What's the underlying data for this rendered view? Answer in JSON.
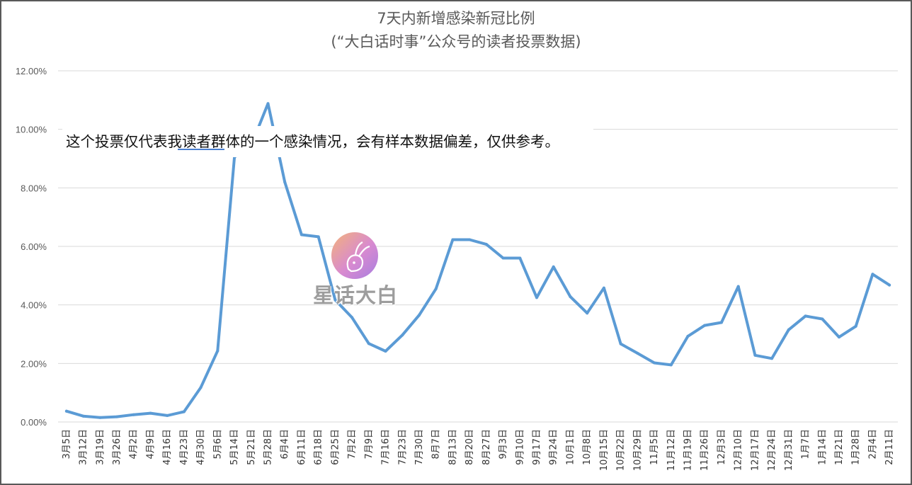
{
  "chart_data": {
    "type": "line",
    "title": "7天内新增感染新冠比例",
    "subtitle": "(“大白话时事”公众号的读者投票数据)",
    "ylim": [
      0,
      0.12
    ],
    "yticks": [
      "0.00%",
      "2.00%",
      "4.00%",
      "6.00%",
      "8.00%",
      "10.00%",
      "12.00%"
    ],
    "grid": true,
    "line_color": "#5b9bd5",
    "categories": [
      "3月5日",
      "3月12日",
      "3月19日",
      "3月26日",
      "4月2日",
      "4月9日",
      "4月16日",
      "4月23日",
      "4月30日",
      "5月6日",
      "5月14日",
      "5月21日",
      "5月28日",
      "6月4日",
      "6月11日",
      "6月18日",
      "6月25日",
      "7月2日",
      "7月9日",
      "7月16日",
      "7月23日",
      "7月30日",
      "8月7日",
      "8月13日",
      "8月20日",
      "8月27日",
      "9月3日",
      "9月10日",
      "9月17日",
      "9月24日",
      "10月1日",
      "10月8日",
      "10月15日",
      "10月22日",
      "10月29日",
      "11月5日",
      "11月12日",
      "11月19日",
      "11月26日",
      "12月3日",
      "12月10日",
      "12月17日",
      "12月24日",
      "12月31日",
      "1月7日",
      "1月14日",
      "1月21日",
      "1月28日",
      "2月4日",
      "2月11日"
    ],
    "values": [
      0.0037,
      0.002,
      0.0015,
      0.0018,
      0.0025,
      0.003,
      0.0022,
      0.0035,
      0.0118,
      0.0243,
      0.0905,
      0.0945,
      0.1088,
      0.082,
      0.064,
      0.0633,
      0.0417,
      0.0357,
      0.0268,
      0.0242,
      0.0297,
      0.0365,
      0.0455,
      0.0623,
      0.0623,
      0.0607,
      0.056,
      0.056,
      0.0425,
      0.053,
      0.0428,
      0.0372,
      0.0458,
      0.0267,
      0.0235,
      0.0202,
      0.0195,
      0.0293,
      0.033,
      0.034,
      0.0463,
      0.0228,
      0.0217,
      0.0315,
      0.0362,
      0.0352,
      0.029,
      0.0327,
      0.0505,
      0.0468
    ]
  },
  "annotation": {
    "text": "这个投票仅代表我读者群体的一个感染情况，会有样本数据偏差，仅供参考。"
  },
  "watermark": {
    "text": "星话大白"
  }
}
